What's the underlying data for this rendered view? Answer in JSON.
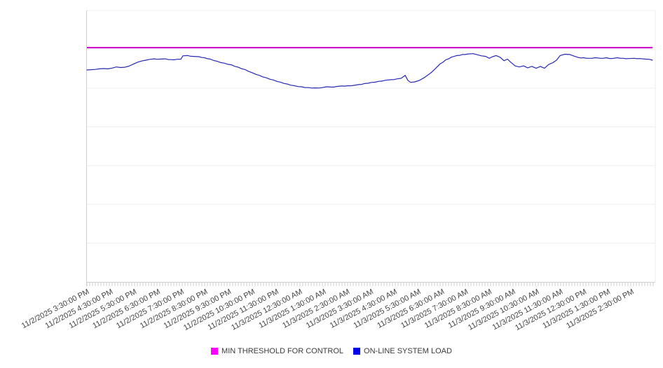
{
  "chart_data": {
    "type": "line",
    "title": "",
    "x_axis": {
      "tick_labels": [
        "11/2/2025 3:30:00 PM",
        "11/2/2025 4:30:00 PM",
        "11/2/2025 5:30:00 PM",
        "11/2/2025 6:30:00 PM",
        "11/2/2025 7:30:00 PM",
        "11/2/2025 8:30:00 PM",
        "11/2/2025 9:30:00 PM",
        "11/2/2025 10:30:00 PM",
        "11/2/2025 11:30:00 PM",
        "11/3/2025 12:30:00 AM",
        "11/3/2025 1:30:00 AM",
        "11/3/2025 2:30:00 AM",
        "11/3/2025 3:30:00 AM",
        "11/3/2025 4:30:00 AM",
        "11/3/2025 5:30:00 AM",
        "11/3/2025 6:30:00 AM",
        "11/3/2025 7:30:00 AM",
        "11/3/2025 8:30:00 AM",
        "11/3/2025 9:30:00 AM",
        "11/3/2025 10:30:00 AM",
        "11/3/2025 11:30:00 AM",
        "11/3/2025 12:30:00 PM",
        "11/3/2025 1:30:00 PM",
        "11/3/2025 2:30:00 PM"
      ],
      "label_rotation_deg": -28,
      "hours_span": 24,
      "tick_interval": "1 hour",
      "minor_ticks": true
    },
    "y_axis": {
      "labels_visible": false,
      "min": 0,
      "max": 100,
      "note": "no y-axis tick labels shown in image; values are normalized 0-100 estimates",
      "gridlines": 7,
      "grid_on": true
    },
    "series": [
      {
        "name": "MIN THRESHOLD FOR CONTROL",
        "type": "constant-line",
        "color": "#cc00cc",
        "stroke_width": 2,
        "value": 86.3,
        "x_start_hours": 0,
        "x_end_hours": 23.88
      },
      {
        "name": "ON-LINE SYSTEM LOAD",
        "type": "line",
        "color": "#2828b4",
        "stroke_width": 1.2,
        "points": [
          [
            0,
            78.1
          ],
          [
            0.18,
            78.2
          ],
          [
            0.36,
            78.3
          ],
          [
            0.53,
            78.5
          ],
          [
            0.71,
            78.6
          ],
          [
            0.89,
            78.5
          ],
          [
            1.07,
            78.8
          ],
          [
            1.24,
            79.2
          ],
          [
            1.42,
            79.0
          ],
          [
            1.6,
            79.1
          ],
          [
            1.78,
            79.5
          ],
          [
            1.95,
            80.2
          ],
          [
            2.13,
            80.9
          ],
          [
            2.31,
            81.4
          ],
          [
            2.49,
            81.7
          ],
          [
            2.66,
            82.0
          ],
          [
            2.84,
            82.2
          ],
          [
            3.08,
            82.1
          ],
          [
            3.31,
            82.2
          ],
          [
            3.55,
            81.9
          ],
          [
            3.79,
            82.0
          ],
          [
            3.97,
            82.1
          ],
          [
            4.05,
            83.3
          ],
          [
            4.26,
            83.4
          ],
          [
            4.5,
            83.1
          ],
          [
            4.73,
            83.0
          ],
          [
            4.97,
            82.6
          ],
          [
            5.21,
            82.1
          ],
          [
            5.5,
            81.3
          ],
          [
            5.8,
            80.6
          ],
          [
            6.1,
            80.0
          ],
          [
            6.39,
            79.1
          ],
          [
            6.69,
            78.2
          ],
          [
            6.98,
            77.1
          ],
          [
            7.28,
            76.1
          ],
          [
            7.58,
            75.2
          ],
          [
            7.87,
            74.4
          ],
          [
            8.17,
            73.6
          ],
          [
            8.46,
            72.9
          ],
          [
            8.76,
            72.3
          ],
          [
            9.06,
            71.9
          ],
          [
            9.35,
            71.6
          ],
          [
            9.65,
            71.5
          ],
          [
            9.94,
            71.6
          ],
          [
            10.12,
            71.9
          ],
          [
            10.3,
            71.8
          ],
          [
            10.54,
            72.0
          ],
          [
            10.77,
            72.2
          ],
          [
            11.01,
            72.3
          ],
          [
            11.25,
            72.4
          ],
          [
            11.48,
            72.7
          ],
          [
            11.72,
            73.1
          ],
          [
            12.02,
            73.5
          ],
          [
            12.31,
            73.9
          ],
          [
            12.61,
            74.3
          ],
          [
            12.84,
            74.5
          ],
          [
            13.08,
            74.8
          ],
          [
            13.26,
            75.0
          ],
          [
            13.44,
            76.1
          ],
          [
            13.55,
            74.3
          ],
          [
            13.67,
            73.5
          ],
          [
            13.85,
            73.7
          ],
          [
            14.03,
            74.2
          ],
          [
            14.23,
            75.2
          ],
          [
            14.44,
            76.5
          ],
          [
            14.68,
            78.3
          ],
          [
            14.91,
            80.3
          ],
          [
            15.15,
            81.8
          ],
          [
            15.39,
            82.8
          ],
          [
            15.62,
            83.4
          ],
          [
            15.86,
            83.8
          ],
          [
            16.1,
            84.0
          ],
          [
            16.31,
            84.1
          ],
          [
            16.48,
            83.7
          ],
          [
            16.66,
            83.3
          ],
          [
            16.84,
            83.1
          ],
          [
            16.99,
            82.4
          ],
          [
            17.13,
            83.0
          ],
          [
            17.28,
            83.4
          ],
          [
            17.46,
            82.7
          ],
          [
            17.61,
            81.5
          ],
          [
            17.76,
            82.1
          ],
          [
            17.9,
            80.9
          ],
          [
            18.08,
            79.6
          ],
          [
            18.26,
            79.2
          ],
          [
            18.44,
            79.6
          ],
          [
            18.61,
            78.9
          ],
          [
            18.79,
            79.4
          ],
          [
            18.97,
            78.7
          ],
          [
            19.15,
            79.4
          ],
          [
            19.32,
            78.7
          ],
          [
            19.5,
            80.1
          ],
          [
            19.68,
            80.8
          ],
          [
            19.83,
            81.7
          ],
          [
            19.98,
            83.4
          ],
          [
            20.18,
            83.9
          ],
          [
            20.39,
            83.8
          ],
          [
            20.57,
            83.2
          ],
          [
            20.74,
            82.7
          ],
          [
            20.98,
            82.6
          ],
          [
            21.22,
            82.4
          ],
          [
            21.46,
            82.6
          ],
          [
            21.69,
            82.4
          ],
          [
            21.93,
            82.6
          ],
          [
            22.17,
            82.3
          ],
          [
            22.4,
            82.6
          ],
          [
            22.64,
            82.4
          ],
          [
            22.88,
            82.3
          ],
          [
            23.11,
            82.4
          ],
          [
            23.35,
            82.3
          ],
          [
            23.58,
            82.1
          ],
          [
            23.76,
            82.0
          ],
          [
            23.88,
            81.7
          ]
        ]
      }
    ],
    "legend": {
      "position": "bottom-center",
      "items": [
        {
          "label": "MIN THRESHOLD FOR CONTROL",
          "swatch_color": "#ff00ff"
        },
        {
          "label": "ON-LINE SYSTEM LOAD",
          "swatch_color": "#0000ee"
        }
      ]
    },
    "colors": {
      "grid": "#ededed",
      "axis": "#cfcfcf",
      "tick": "#cfcfcf",
      "label_text": "#424242",
      "background": "#ffffff"
    }
  }
}
